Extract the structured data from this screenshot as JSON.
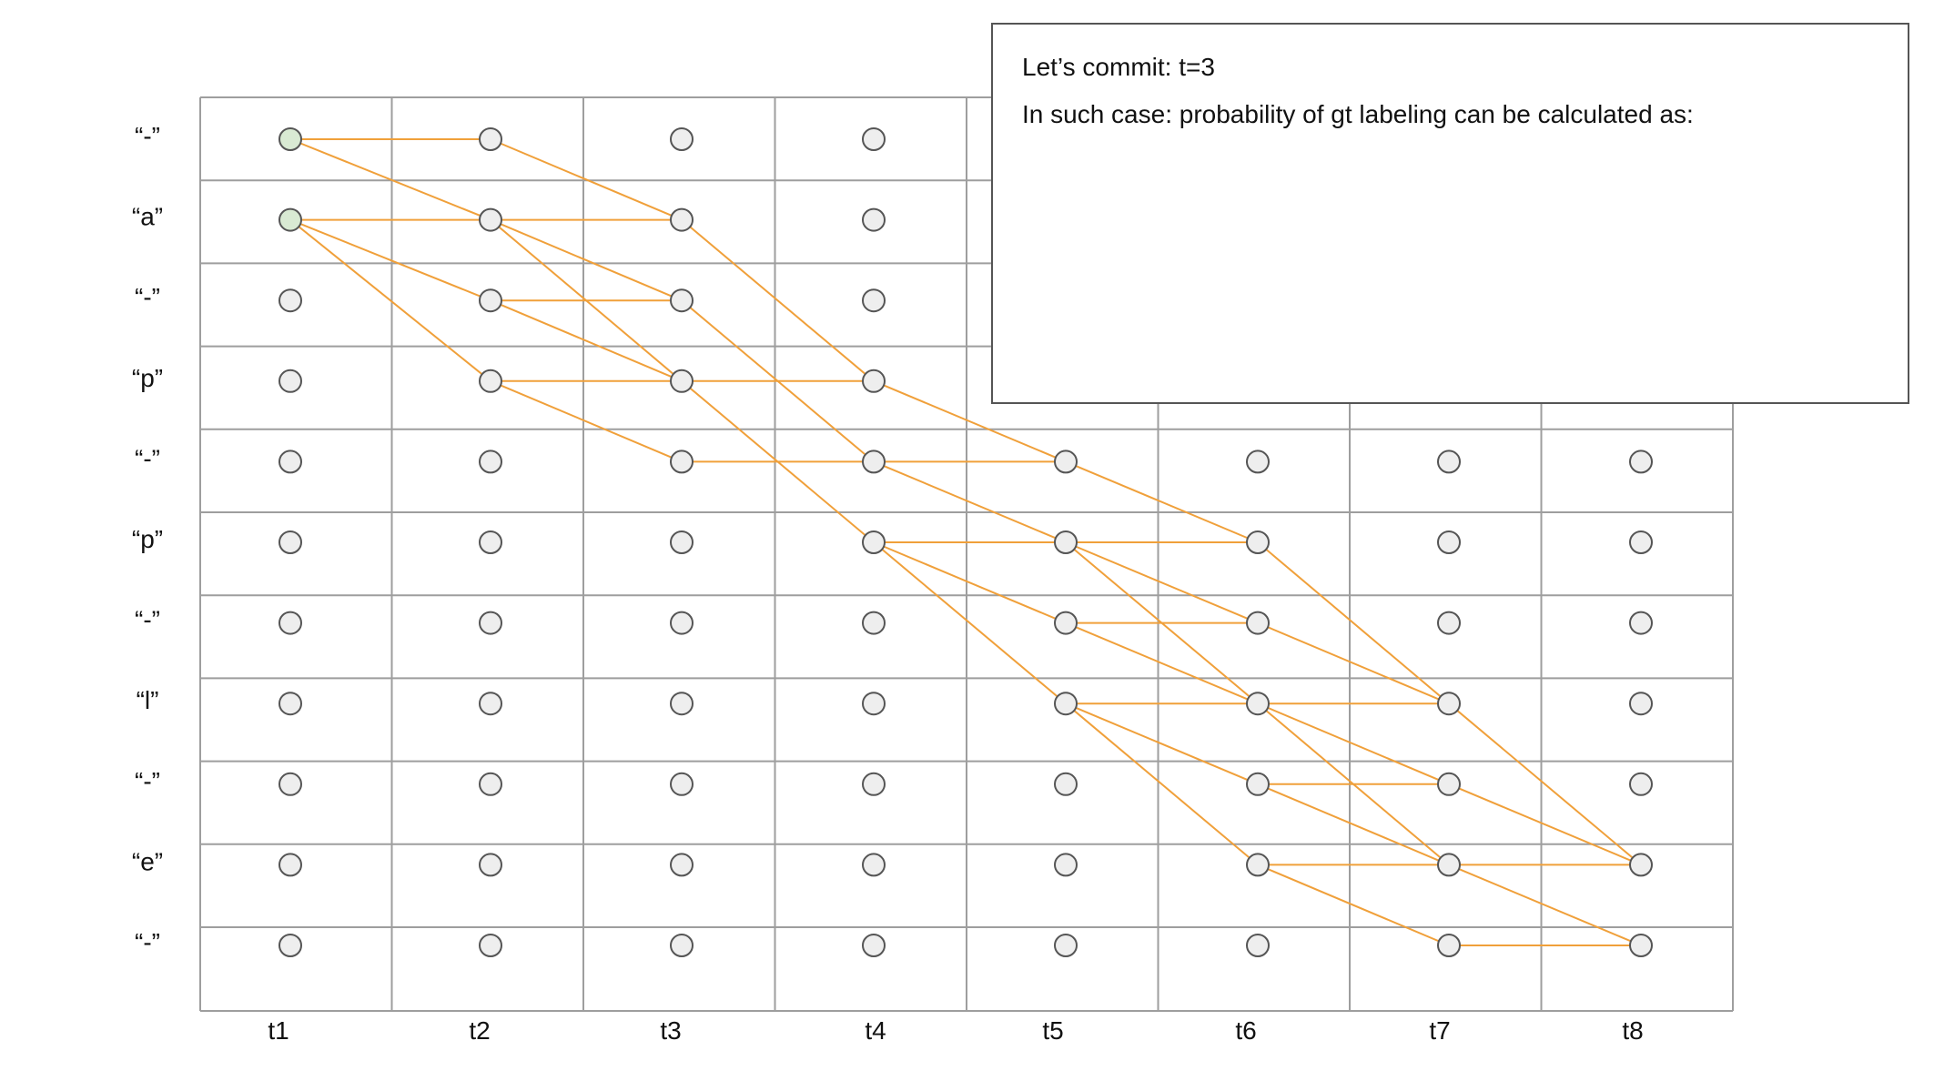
{
  "diagram": {
    "row_labels": [
      "“-”",
      "“a”",
      "“-”",
      "“p”",
      "“-”",
      "“p”",
      "“-”",
      "“l”",
      "“-”",
      "“e”",
      "“-”"
    ],
    "col_labels": [
      "t1",
      "t2",
      "t3",
      "t4",
      "t5",
      "t6",
      "t7",
      "t8"
    ],
    "visible_nodes": [
      [
        1,
        1,
        1,
        1,
        0,
        0,
        0,
        0
      ],
      [
        1,
        1,
        1,
        1,
        0,
        0,
        0,
        0
      ],
      [
        1,
        1,
        1,
        1,
        0,
        0,
        0,
        0
      ],
      [
        1,
        1,
        1,
        1,
        0,
        0,
        0,
        0
      ],
      [
        1,
        1,
        1,
        1,
        1,
        1,
        1,
        1
      ],
      [
        1,
        1,
        1,
        1,
        1,
        1,
        1,
        1
      ],
      [
        1,
        1,
        1,
        1,
        1,
        1,
        1,
        1
      ],
      [
        1,
        1,
        1,
        1,
        1,
        1,
        1,
        1
      ],
      [
        1,
        1,
        1,
        1,
        1,
        1,
        1,
        1
      ],
      [
        1,
        1,
        1,
        1,
        1,
        1,
        1,
        1
      ],
      [
        1,
        1,
        1,
        1,
        1,
        1,
        1,
        1
      ]
    ],
    "start_nodes": [
      [
        0,
        0
      ],
      [
        1,
        0
      ]
    ],
    "paths": [
      [
        [
          0,
          0
        ],
        [
          0,
          1
        ]
      ],
      [
        [
          0,
          0
        ],
        [
          1,
          1
        ]
      ],
      [
        [
          0,
          1
        ],
        [
          1,
          2
        ]
      ],
      [
        [
          1,
          0
        ],
        [
          1,
          1
        ]
      ],
      [
        [
          1,
          0
        ],
        [
          2,
          1
        ]
      ],
      [
        [
          1,
          0
        ],
        [
          3,
          1
        ]
      ],
      [
        [
          1,
          1
        ],
        [
          1,
          2
        ]
      ],
      [
        [
          1,
          1
        ],
        [
          2,
          2
        ]
      ],
      [
        [
          1,
          1
        ],
        [
          3,
          2
        ]
      ],
      [
        [
          2,
          1
        ],
        [
          2,
          2
        ]
      ],
      [
        [
          2,
          1
        ],
        [
          3,
          2
        ]
      ],
      [
        [
          3,
          1
        ],
        [
          3,
          2
        ]
      ],
      [
        [
          3,
          1
        ],
        [
          4,
          2
        ]
      ],
      [
        [
          1,
          2
        ],
        [
          3,
          3
        ]
      ],
      [
        [
          2,
          2
        ],
        [
          4,
          3
        ]
      ],
      [
        [
          3,
          2
        ],
        [
          3,
          3
        ]
      ],
      [
        [
          3,
          2
        ],
        [
          5,
          3
        ]
      ],
      [
        [
          4,
          2
        ],
        [
          4,
          3
        ]
      ],
      [
        [
          3,
          3
        ],
        [
          5,
          5
        ]
      ],
      [
        [
          4,
          3
        ],
        [
          4,
          4
        ]
      ],
      [
        [
          4,
          3
        ],
        [
          5,
          4
        ]
      ],
      [
        [
          5,
          3
        ],
        [
          5,
          4
        ]
      ],
      [
        [
          5,
          3
        ],
        [
          6,
          4
        ]
      ],
      [
        [
          5,
          3
        ],
        [
          7,
          4
        ]
      ],
      [
        [
          5,
          4
        ],
        [
          5,
          5
        ]
      ],
      [
        [
          5,
          4
        ],
        [
          6,
          5
        ]
      ],
      [
        [
          5,
          4
        ],
        [
          7,
          5
        ]
      ],
      [
        [
          6,
          4
        ],
        [
          6,
          5
        ]
      ],
      [
        [
          6,
          4
        ],
        [
          7,
          5
        ]
      ],
      [
        [
          7,
          4
        ],
        [
          7,
          5
        ]
      ],
      [
        [
          7,
          4
        ],
        [
          8,
          5
        ]
      ],
      [
        [
          7,
          4
        ],
        [
          9,
          5
        ]
      ],
      [
        [
          5,
          5
        ],
        [
          7,
          6
        ]
      ],
      [
        [
          6,
          5
        ],
        [
          7,
          6
        ]
      ],
      [
        [
          7,
          5
        ],
        [
          7,
          6
        ]
      ],
      [
        [
          7,
          5
        ],
        [
          8,
          6
        ]
      ],
      [
        [
          7,
          5
        ],
        [
          9,
          6
        ]
      ],
      [
        [
          8,
          5
        ],
        [
          8,
          6
        ]
      ],
      [
        [
          8,
          5
        ],
        [
          9,
          6
        ]
      ],
      [
        [
          9,
          5
        ],
        [
          9,
          6
        ]
      ],
      [
        [
          9,
          5
        ],
        [
          10,
          6
        ]
      ],
      [
        [
          7,
          6
        ],
        [
          9,
          7
        ]
      ],
      [
        [
          8,
          6
        ],
        [
          9,
          7
        ]
      ],
      [
        [
          9,
          6
        ],
        [
          9,
          7
        ]
      ],
      [
        [
          9,
          6
        ],
        [
          10,
          7
        ]
      ],
      [
        [
          10,
          6
        ],
        [
          10,
          7
        ]
      ]
    ],
    "colors": {
      "grid": "#9e9e9e",
      "node_fill": "#eeeeee",
      "node_stroke": "#555555",
      "start_fill": "#d9ead3",
      "path": "#f0a03a"
    }
  },
  "callout": {
    "line1": "Let’s commit: t=3",
    "line2": "In such case: probability of gt labeling can be calculated as:"
  }
}
